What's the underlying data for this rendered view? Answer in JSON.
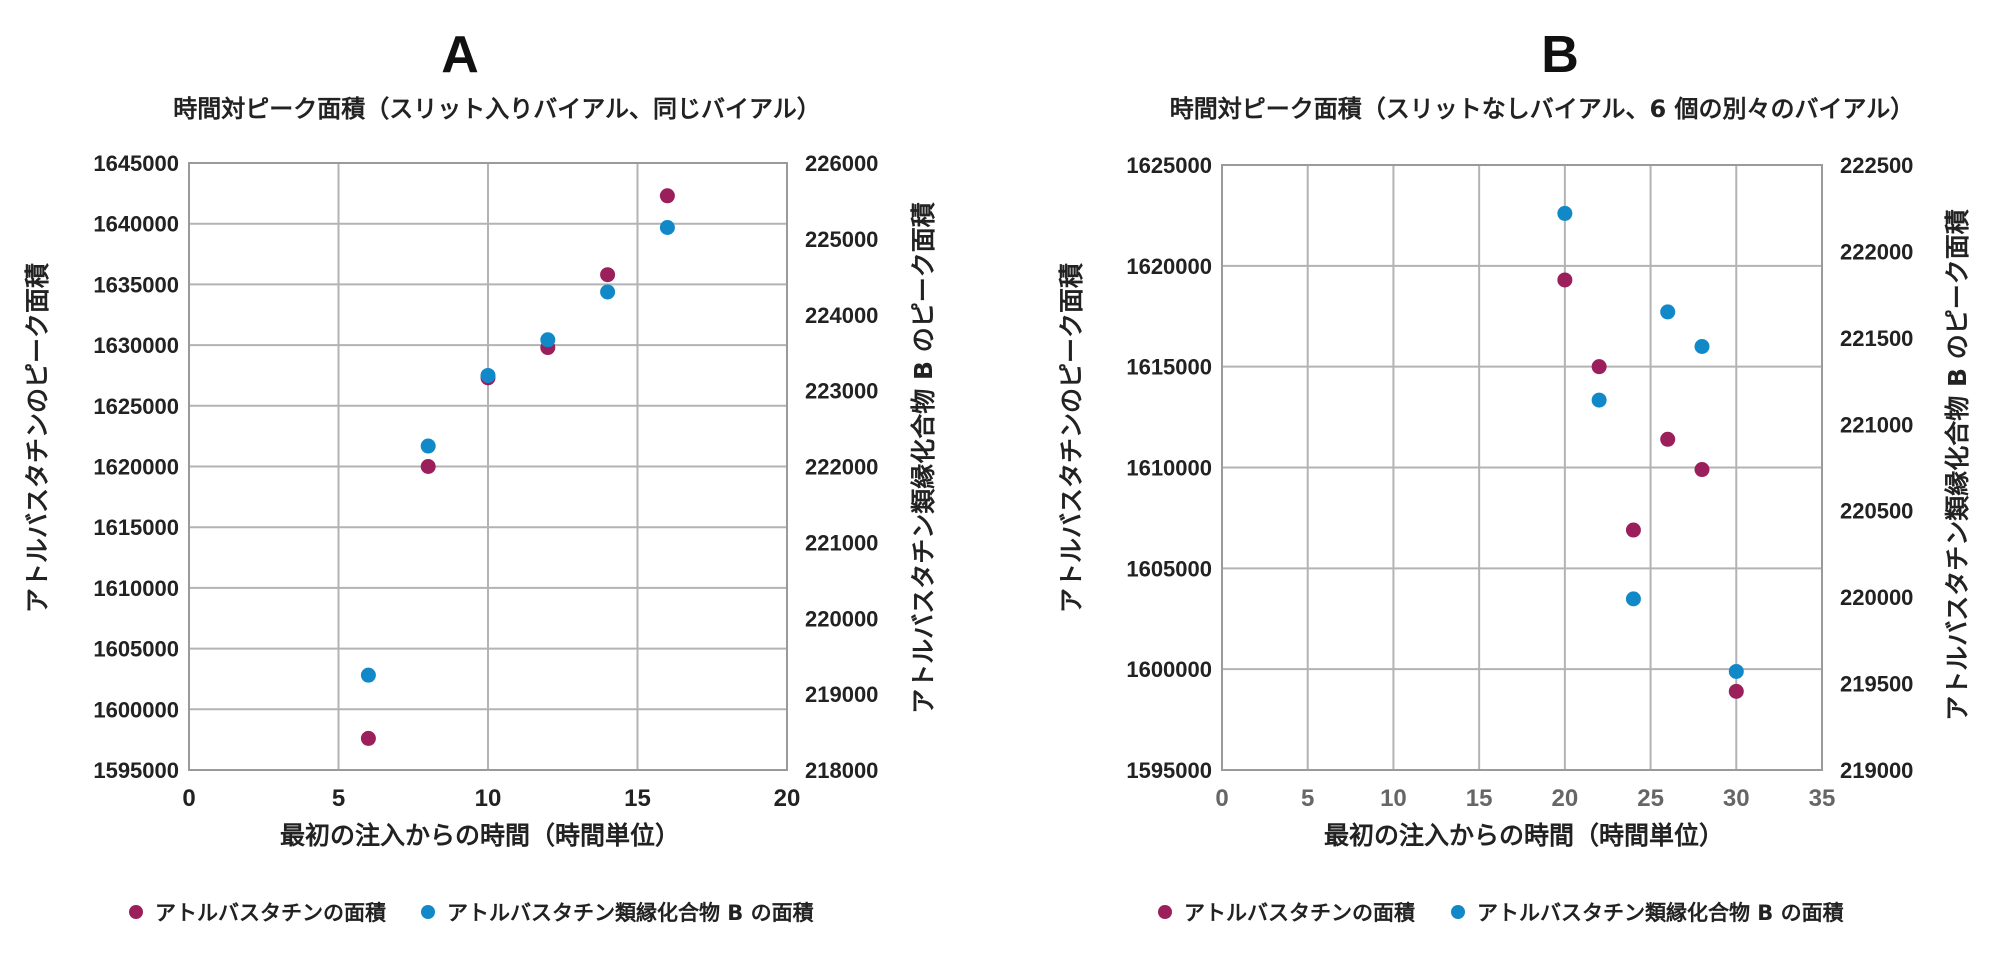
{
  "colors": {
    "atorvastatin": "#9b1f5b",
    "related_b": "#1189c8",
    "grid": "#b3b3b3"
  },
  "chart_data": [
    {
      "type": "scatter",
      "panel_label": "A",
      "title": "時間対ピーク面積（スリット入りバイアル、同じバイアル）",
      "xlabel": "最初の注入からの時間（時間単位）",
      "ylabel": "アトルバスタチンのピーク面積",
      "y2label": "アトルバスタチン類縁化合物 B のピーク面積",
      "xlim": [
        0,
        20
      ],
      "xticks": [
        0,
        5,
        10,
        15,
        20
      ],
      "ylim": [
        1595000,
        1645000
      ],
      "yticks": [
        1595000,
        1600000,
        1605000,
        1610000,
        1615000,
        1620000,
        1625000,
        1630000,
        1635000,
        1640000,
        1645000
      ],
      "y2lim": [
        218000,
        226000
      ],
      "y2ticks": [
        218000,
        219000,
        220000,
        221000,
        222000,
        223000,
        224000,
        225000,
        226000
      ],
      "grid": true,
      "legend_position": "bottom",
      "series": [
        {
          "name": "アトルバスタチンの面積",
          "axis": "left",
          "x": [
            6,
            8,
            10,
            12,
            14,
            16
          ],
          "y": [
            1597600,
            1620000,
            1627300,
            1629800,
            1635800,
            1642300
          ]
        },
        {
          "name": "アトルバスタチン類縁化合物 B の面積",
          "axis": "right",
          "x": [
            6,
            8,
            10,
            12,
            14,
            16
          ],
          "y": [
            219250,
            222270,
            223200,
            223670,
            224300,
            225150
          ]
        }
      ]
    },
    {
      "type": "scatter",
      "panel_label": "B",
      "title": "時間対ピーク面積（スリットなしバイアル、6 個の別々のバイアル）",
      "xlabel": "最初の注入からの時間（時間単位）",
      "ylabel": "アトルバスタチンのピーク面積",
      "y2label": "アトルバスタチン類縁化合物 B のピーク面積",
      "xlim": [
        0,
        35
      ],
      "xticks": [
        0,
        5,
        10,
        15,
        20,
        25,
        30,
        35
      ],
      "ylim": [
        1595000,
        1625000
      ],
      "yticks": [
        1595000,
        1600000,
        1605000,
        1610000,
        1615000,
        1620000,
        1625000
      ],
      "y2lim": [
        219000,
        222500
      ],
      "y2ticks": [
        219000,
        219500,
        220000,
        220500,
        221000,
        221500,
        222000,
        222500
      ],
      "grid": true,
      "legend_position": "bottom",
      "series": [
        {
          "name": "アトルバスタチンの面積",
          "axis": "left",
          "x": [
            20,
            22,
            24,
            26,
            28,
            30
          ],
          "y": [
            1619300,
            1615000,
            1606900,
            1611400,
            1609900,
            1598900
          ]
        },
        {
          "name": "アトルバスタチン類縁化合物 B の面積",
          "axis": "right",
          "x": [
            20,
            22,
            24,
            26,
            28,
            30
          ],
          "y": [
            222220,
            221140,
            219990,
            221650,
            221450,
            219570
          ]
        }
      ]
    }
  ]
}
